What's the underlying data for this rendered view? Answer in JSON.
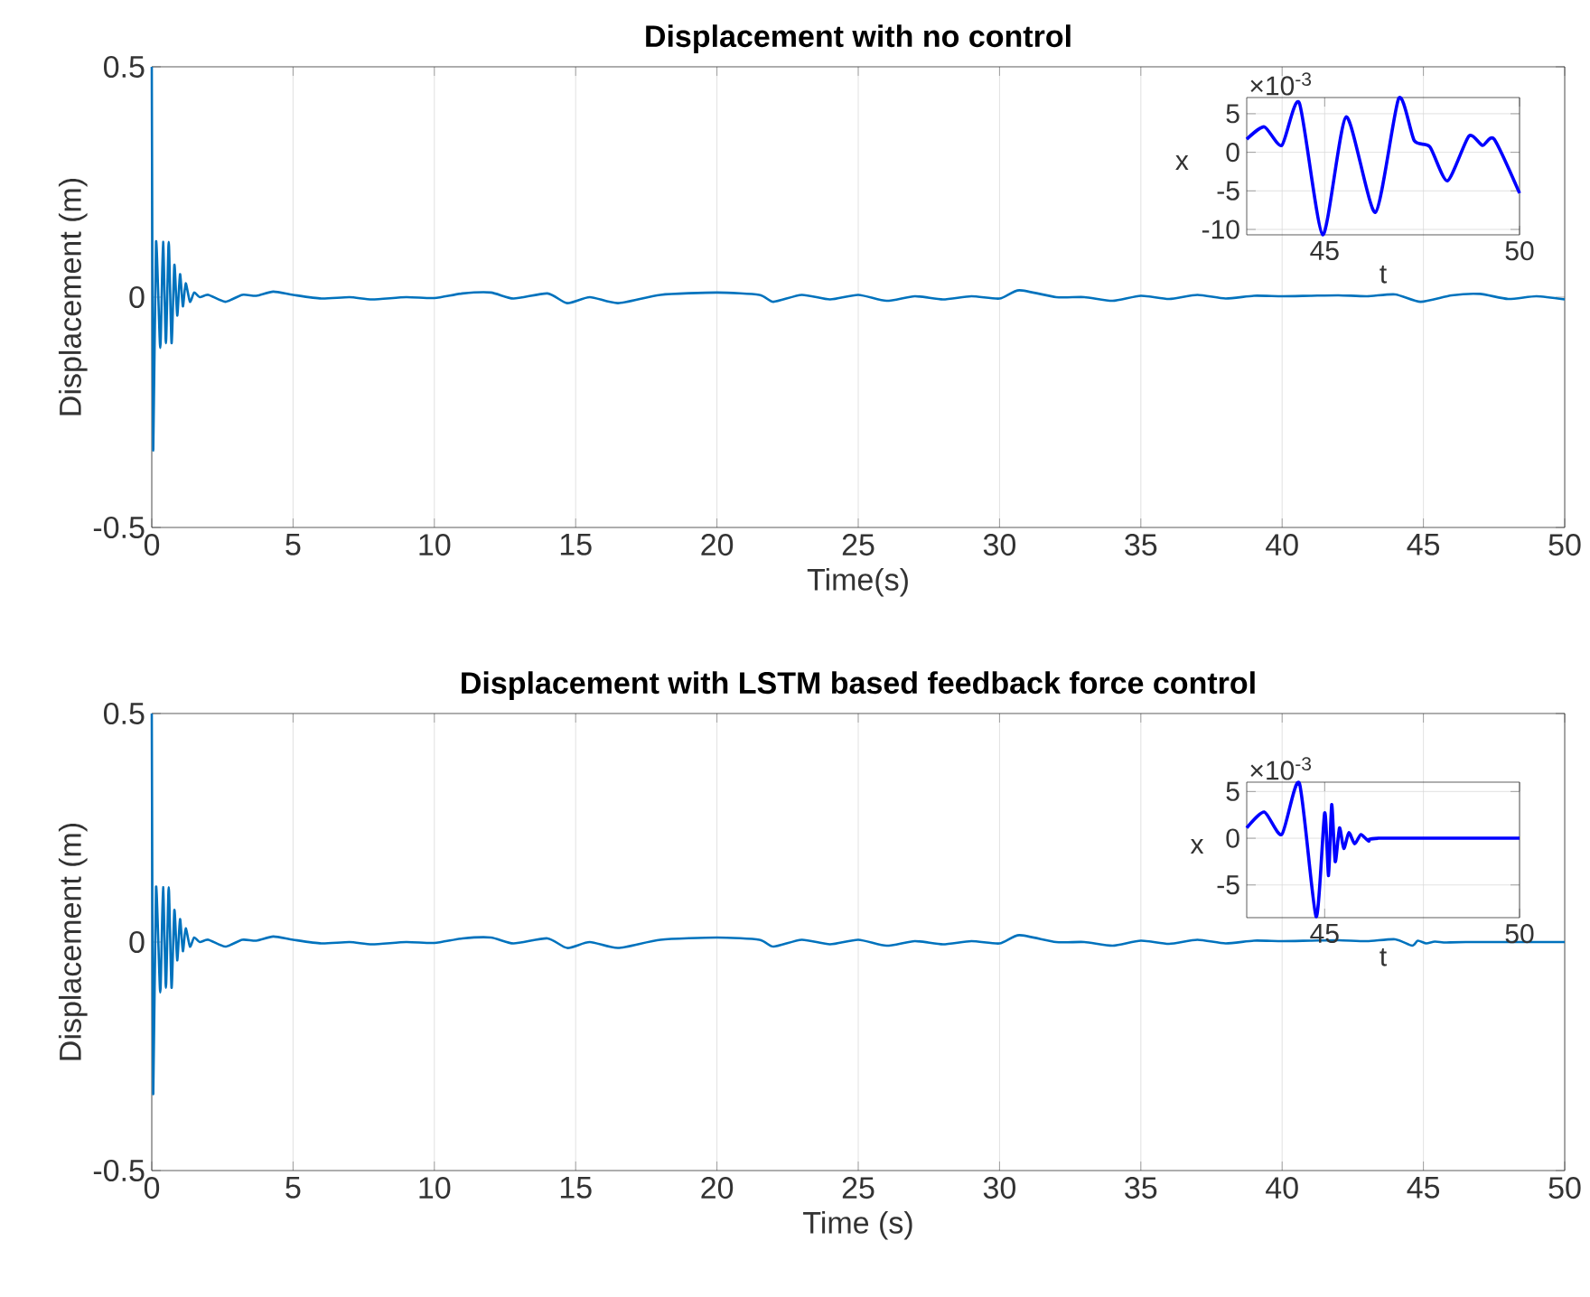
{
  "chart_data": [
    {
      "type": "line",
      "title": "Displacement with no control",
      "xlabel": "Time(s)",
      "ylabel": "Displacement (m)",
      "color": "#0072bd",
      "xlim": [
        0,
        50
      ],
      "ylim": [
        -0.5,
        0.5
      ],
      "xticks": [
        0,
        5,
        10,
        15,
        20,
        25,
        30,
        35,
        40,
        45,
        50
      ],
      "yticks": [
        -0.5,
        0,
        0.5
      ],
      "grid": "x",
      "x": [
        0,
        0.05,
        0.15,
        0.3,
        0.4,
        0.5,
        0.6,
        0.7,
        0.8,
        0.9,
        1.0,
        1.1,
        1.2,
        1.35,
        1.5,
        1.7,
        2,
        2.6,
        3.2,
        3.7,
        4.3,
        5,
        6,
        7,
        7.8,
        9,
        10,
        11,
        12,
        12.8,
        14,
        14.7,
        15.5,
        16.5,
        18,
        20,
        21.5,
        22,
        23,
        24,
        25,
        26,
        27,
        28,
        29,
        30,
        30.7,
        32,
        33,
        34,
        35,
        36,
        37,
        38,
        39,
        40,
        41,
        42,
        43,
        44,
        44.9,
        46,
        47,
        48,
        49,
        50
      ],
      "values": [
        0.5,
        -0.33,
        0.12,
        -0.11,
        0.12,
        -0.1,
        0.12,
        -0.1,
        0.07,
        -0.04,
        0.05,
        -0.02,
        0.03,
        -0.01,
        0.01,
        0,
        0.005,
        -0.01,
        0.005,
        0.003,
        0.012,
        0.005,
        -0.003,
        0,
        -0.005,
        0,
        -0.002,
        0.008,
        0.01,
        -0.003,
        0.008,
        -0.013,
        0,
        -0.013,
        0.005,
        0.01,
        0.005,
        -0.01,
        0.005,
        -0.005,
        0.005,
        -0.008,
        0.002,
        -0.005,
        0.002,
        -0.003,
        0.015,
        0,
        0,
        -0.008,
        0.003,
        -0.004,
        0.005,
        -0.003,
        0.003,
        0.002,
        0.003,
        0.004,
        0.002,
        0.006,
        -0.01,
        0.004,
        0.007,
        -0.004,
        0.002,
        -0.005
      ]
    },
    {
      "type": "line",
      "title": "Displacement with LSTM based feedback force control",
      "xlabel": "Time (s)",
      "ylabel": "Displacement (m)",
      "color": "#0072bd",
      "xlim": [
        0,
        50
      ],
      "ylim": [
        -0.5,
        0.5
      ],
      "xticks": [
        0,
        5,
        10,
        15,
        20,
        25,
        30,
        35,
        40,
        45,
        50
      ],
      "yticks": [
        -0.5,
        0,
        0.5
      ],
      "grid": "x",
      "x": [
        0,
        0.05,
        0.15,
        0.3,
        0.4,
        0.5,
        0.6,
        0.7,
        0.8,
        0.9,
        1.0,
        1.1,
        1.2,
        1.35,
        1.5,
        1.7,
        2,
        2.6,
        3.2,
        3.7,
        4.3,
        5,
        6,
        7,
        7.8,
        9,
        10,
        11,
        12,
        12.8,
        14,
        14.7,
        15.5,
        16.5,
        18,
        20,
        21.5,
        22,
        23,
        24,
        25,
        26,
        27,
        28,
        29,
        30,
        30.7,
        32,
        33,
        34,
        35,
        36,
        37,
        38,
        39,
        40,
        41,
        42,
        43,
        44,
        44.6,
        44.8,
        45.1,
        45.4,
        45.8,
        46.5,
        50
      ],
      "values": [
        0.5,
        -0.33,
        0.12,
        -0.11,
        0.12,
        -0.1,
        0.12,
        -0.1,
        0.07,
        -0.04,
        0.05,
        -0.02,
        0.03,
        -0.01,
        0.01,
        0,
        0.005,
        -0.01,
        0.005,
        0.003,
        0.012,
        0.005,
        -0.003,
        0,
        -0.005,
        0,
        -0.002,
        0.008,
        0.01,
        -0.003,
        0.008,
        -0.013,
        0,
        -0.013,
        0.005,
        0.01,
        0.005,
        -0.01,
        0.005,
        -0.005,
        0.005,
        -0.008,
        0.002,
        -0.005,
        0.002,
        -0.003,
        0.015,
        0,
        0,
        -0.008,
        0.003,
        -0.004,
        0.005,
        -0.003,
        0.003,
        0.002,
        0.003,
        0.004,
        0.002,
        0.006,
        -0.008,
        0.003,
        -0.003,
        0.001,
        -0.001,
        0,
        0
      ]
    },
    {
      "type": "line",
      "xlabel": "t",
      "ylabel": "x",
      "annotations": [
        "×10$^{-3}$"
      ],
      "color": "#0000ff",
      "xlim": [
        43,
        50
      ],
      "ylim": [
        -10.7,
        7.1
      ],
      "xticks": [
        45,
        50
      ],
      "yticks": [
        -10,
        -5,
        0,
        5
      ],
      "grid": true,
      "x": [
        43,
        43.45,
        43.9,
        44.35,
        44.95,
        45.55,
        46.3,
        46.9,
        47.3,
        47.7,
        48.15,
        48.7,
        49.05,
        49.35,
        50
      ],
      "values": [
        1.7,
        3.3,
        0.9,
        6.4,
        -10.7,
        4.6,
        -7.8,
        7.0,
        1.5,
        0.7,
        -3.7,
        2.1,
        0.9,
        1.7,
        -5.3
      ]
    },
    {
      "type": "line",
      "xlabel": "t",
      "ylabel": "x",
      "annotations": [
        "×10$^{-3}$"
      ],
      "color": "#0000ff",
      "xlim": [
        43,
        50
      ],
      "ylim": [
        -8.5,
        6
      ],
      "xticks": [
        45,
        50
      ],
      "yticks": [
        -5,
        0,
        5
      ],
      "grid": true,
      "x": [
        43,
        43.45,
        43.9,
        44.35,
        44.78,
        45.0,
        45.1,
        45.18,
        45.27,
        45.38,
        45.49,
        45.62,
        45.77,
        45.93,
        46.13,
        46.4,
        50
      ],
      "values": [
        1.1,
        2.8,
        0.4,
        5.9,
        -8.4,
        2.7,
        -4.0,
        3.6,
        -2.5,
        1.1,
        -1.1,
        0.6,
        -0.6,
        0.4,
        -0.3,
        0,
        0
      ]
    }
  ]
}
